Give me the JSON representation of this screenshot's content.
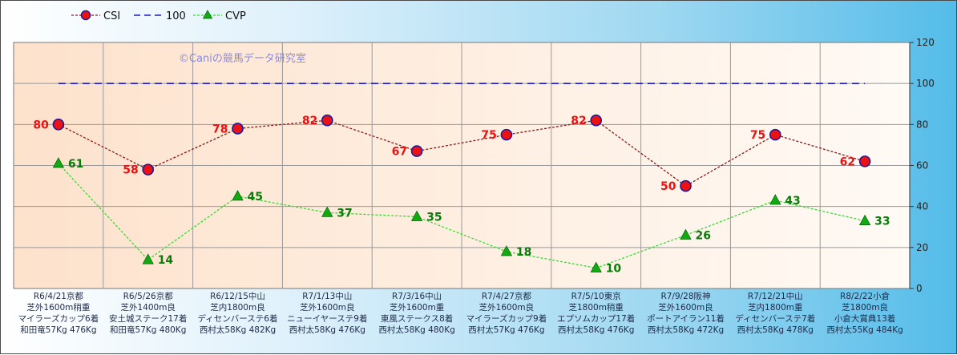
{
  "watermark": "©Caniの競馬データ研究室",
  "colors": {
    "csi_line": "#8b1a1a",
    "csi_marker_fill": "#ee1111",
    "csi_marker_stroke": "#1a1aa0",
    "csi_label": "#ee1111",
    "ref_line": "#1a1acc",
    "cvp_line": "#33dd33",
    "cvp_marker": "#11aa11",
    "cvp_label": "#0a7a0a",
    "plot_left": "#fde2cc",
    "plot_right": "#fffaf5"
  },
  "chart_data": {
    "type": "line",
    "title": "",
    "xlabel": "",
    "ylabel": "",
    "ylim": [
      0,
      120
    ],
    "yticks": [
      "0",
      "20",
      "40",
      "60",
      "80",
      "100",
      "120"
    ],
    "y_axis_side": "right",
    "grid": true,
    "legend_position": "top-left",
    "categories": [
      [
        "R6/4/21京都",
        "芝外1600m稍重",
        "マイラーズカップ6着",
        "和田竜57Kg 476Kg"
      ],
      [
        "R6/5/26京都",
        "芝外1400m良",
        "安土城ステーク17着",
        "和田竜57Kg 480Kg"
      ],
      [
        "R6/12/15中山",
        "芝内1800m良",
        "ディセンバーステ6着",
        "西村太58Kg 482Kg"
      ],
      [
        "R7/1/13中山",
        "芝外1600m良",
        "ニューイヤーステ9着",
        "西村太58Kg 476Kg"
      ],
      [
        "R7/3/16中山",
        "芝外1600m重",
        "東風ステークス8着",
        "西村太58Kg 480Kg"
      ],
      [
        "R7/4/27京都",
        "芝外1600m良",
        "マイラーズカップ9着",
        "西村太57Kg 476Kg"
      ],
      [
        "R7/5/10東京",
        "芝1800m稍重",
        "エプソムカップ17着",
        "西村太58Kg 476Kg"
      ],
      [
        "R7/9/28阪神",
        "芝外1600m良",
        "ポートアイラン11着",
        "西村太58Kg 472Kg"
      ],
      [
        "R7/12/21中山",
        "芝内1800m重",
        "ディセンバーステ7着",
        "西村太58Kg 478Kg"
      ],
      [
        "R8/2/22小倉",
        "芝1800m良",
        "小倉大賞典13着",
        "西村太55Kg 484Kg"
      ]
    ],
    "series": [
      {
        "name": "CSI",
        "values": [
          80,
          58,
          78,
          82,
          67,
          75,
          82,
          50,
          75,
          62
        ],
        "labels": [
          "80",
          "58",
          "78",
          "82",
          "67",
          "75",
          "82",
          "50",
          "75",
          "62"
        ]
      },
      {
        "name": "100",
        "values": [
          100,
          100,
          100,
          100,
          100,
          100,
          100,
          100,
          100,
          100
        ]
      },
      {
        "name": "CVP",
        "values": [
          61,
          14,
          45,
          37,
          35,
          18,
          10,
          26,
          43,
          33
        ],
        "labels": [
          "61",
          "14",
          "45",
          "37",
          "35",
          "18",
          "10",
          "26",
          "43",
          "33"
        ]
      }
    ]
  }
}
